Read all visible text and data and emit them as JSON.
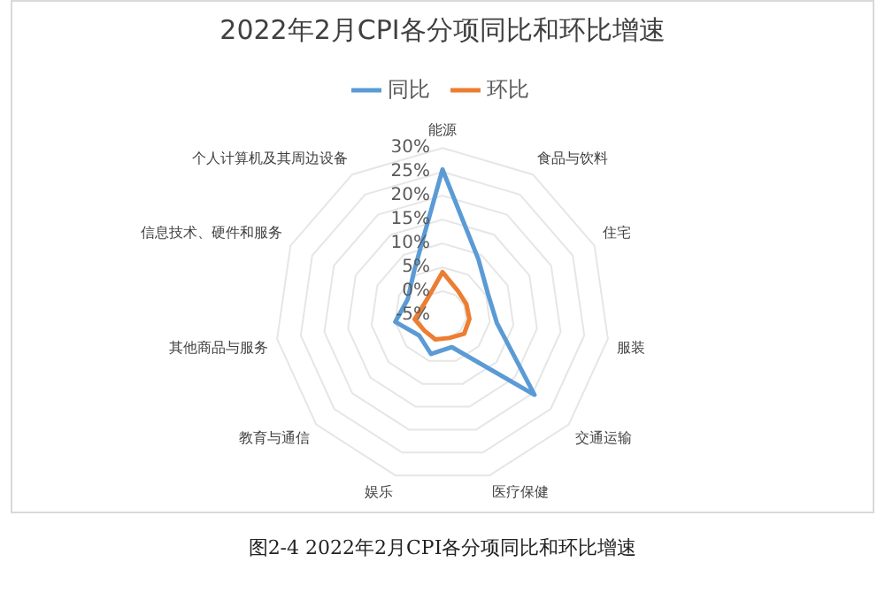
{
  "chart_data": {
    "type": "radar",
    "title": "2022年2月CPI各分项同比和环比增速",
    "categories": [
      "能源",
      "食品与饮料",
      "住宅",
      "服装",
      "交通运输",
      "医疗保健",
      "娱乐",
      "教育与通信",
      "其他商品与服务",
      "信息技术、硬件和服务",
      "个人计算机及其周边设备"
    ],
    "series": [
      {
        "name": "同比",
        "color": "#5b9bd5",
        "values": [
          25.5,
          8.9,
          5.5,
          6.5,
          20.5,
          2,
          3.5,
          1.5,
          5,
          3,
          6
        ]
      },
      {
        "name": "环比",
        "color": "#ed7d31",
        "values": [
          4,
          1,
          0.5,
          0.7,
          1,
          0,
          0.3,
          0,
          0.9,
          -0.5,
          0
        ]
      }
    ],
    "ylim": [
      -5,
      30
    ],
    "yticks": [
      {
        "value": -5,
        "label": "-5%"
      },
      {
        "value": 0,
        "label": "0%"
      },
      {
        "value": 5,
        "label": "5%"
      },
      {
        "value": 10,
        "label": "10%"
      },
      {
        "value": 15,
        "label": "15%"
      },
      {
        "value": 20,
        "label": "20%"
      },
      {
        "value": 25,
        "label": "25%"
      },
      {
        "value": 30,
        "label": "30%"
      }
    ],
    "grid": true,
    "legend": "top",
    "marker": "none",
    "line_style": "solid",
    "annotations": [
      "图2-4 2022年2月CPI各分项同比和环比增速"
    ]
  }
}
